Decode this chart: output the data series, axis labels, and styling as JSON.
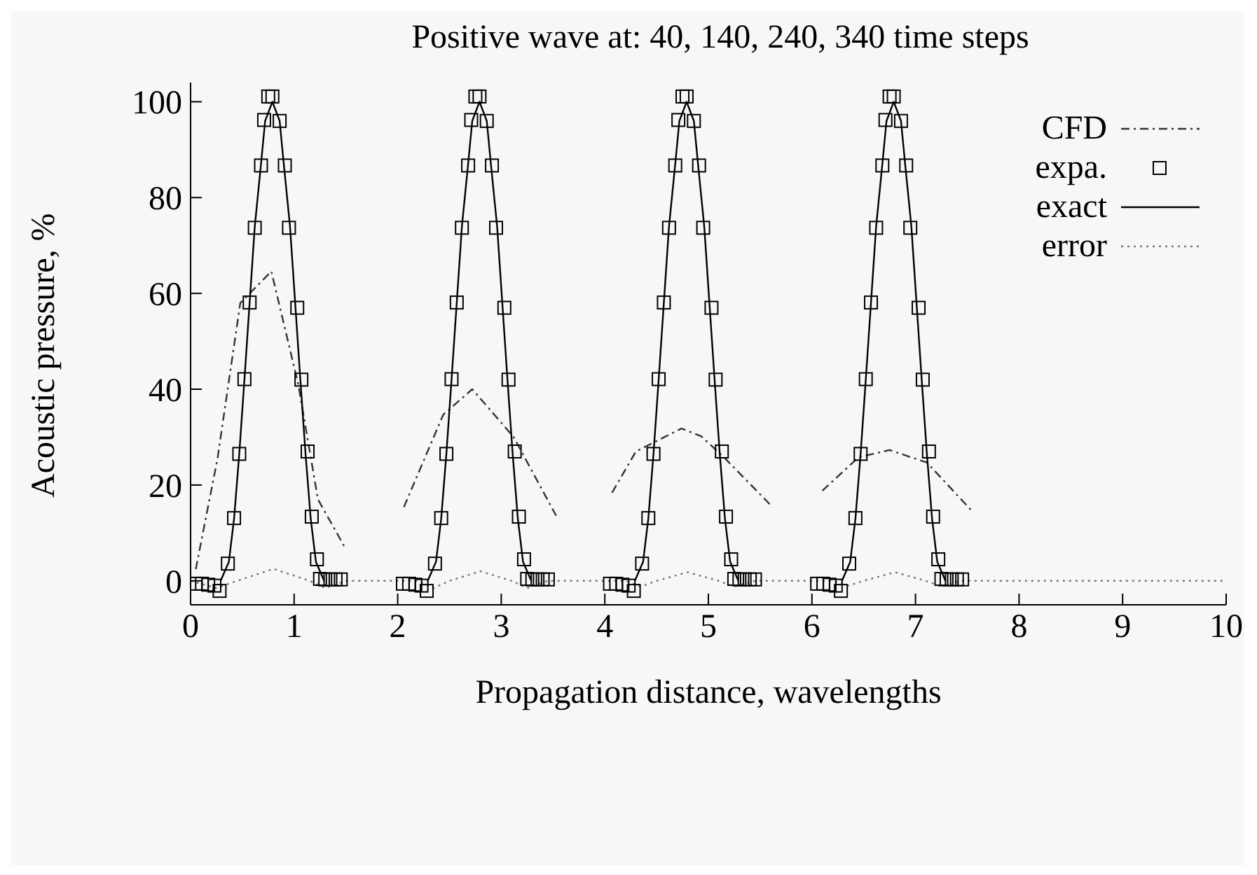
{
  "chart_data": {
    "type": "line",
    "title": "Positive wave at: 40, 140, 240, 340 time steps",
    "xlabel": "Propagation distance, wavelengths",
    "ylabel": "Acoustic pressure, %",
    "xlim": [
      0,
      10
    ],
    "xticks": [
      0,
      1,
      2,
      3,
      4,
      5,
      6,
      7,
      8,
      9,
      10
    ],
    "ylim": [
      -5,
      104
    ],
    "yticks": [
      0,
      20,
      40,
      60,
      80,
      100
    ],
    "grid": false,
    "legend": "top right",
    "series": [
      {
        "name": "CFD",
        "color": "#333333",
        "line_style": "dashed",
        "marker": "none",
        "x": [
          0.05,
          0.26,
          0.48,
          0.78,
          1.04,
          1.23,
          1.5,
          1.8,
          2.06,
          2.44,
          2.72,
          3.12,
          3.53,
          3.8,
          4.07,
          4.3,
          4.74,
          4.93,
          5.15,
          5.62,
          5.9,
          6.1,
          6.45,
          6.75,
          7.11,
          7.54
        ],
        "values": [
          2.4,
          25.5,
          58,
          64.6,
          41,
          17,
          6.6,
          null,
          15.4,
          34.7,
          40,
          30,
          13.6,
          null,
          18.4,
          27,
          31.8,
          30.2,
          25.8,
          15.4,
          null,
          18.8,
          25.8,
          27.3,
          24.7,
          14.7
        ]
      },
      {
        "name": "expa.",
        "type": "scatter",
        "color": "#000000",
        "marker": "square",
        "x": [
          0.05,
          0.11,
          0.17,
          0.23,
          0.28,
          0.36,
          0.42,
          0.47,
          0.52,
          0.57,
          0.62,
          0.68,
          0.71,
          0.75,
          0.79,
          0.86,
          0.91,
          0.95,
          1.03,
          1.07,
          1.13,
          1.17,
          1.22,
          1.25,
          1.3,
          1.35,
          1.4,
          1.45,
          2.05,
          2.11,
          2.17,
          2.23,
          2.28,
          2.36,
          2.42,
          2.47,
          2.52,
          2.57,
          2.62,
          2.68,
          2.71,
          2.75,
          2.79,
          2.86,
          2.91,
          2.95,
          3.03,
          3.07,
          3.13,
          3.17,
          3.22,
          3.25,
          3.3,
          3.35,
          3.4,
          3.45,
          4.05,
          4.11,
          4.17,
          4.23,
          4.28,
          4.36,
          4.42,
          4.47,
          4.52,
          4.57,
          4.62,
          4.68,
          4.71,
          4.75,
          4.79,
          4.86,
          4.91,
          4.95,
          5.03,
          5.07,
          5.13,
          5.17,
          5.22,
          5.25,
          5.3,
          5.35,
          5.4,
          5.45,
          6.05,
          6.11,
          6.17,
          6.23,
          6.28,
          6.36,
          6.42,
          6.47,
          6.52,
          6.57,
          6.62,
          6.68,
          6.71,
          6.75,
          6.79,
          6.86,
          6.91,
          6.95,
          7.03,
          7.07,
          7.13,
          7.17,
          7.22,
          7.25,
          7.3,
          7.35,
          7.4,
          7.45
        ],
        "values": [
          -0.6,
          -0.6,
          -0.8,
          -1,
          -2.1,
          3.6,
          13.1,
          26.5,
          42.1,
          58.1,
          73.7,
          86.7,
          96.2,
          101.1,
          101.1,
          96,
          86.7,
          73.7,
          57,
          42,
          27,
          13.4,
          4.5,
          0.4,
          0.3,
          0.3,
          0.3,
          0.3,
          -0.6,
          -0.6,
          -0.8,
          -1,
          -2.1,
          3.6,
          13.1,
          26.5,
          42.1,
          58.1,
          73.7,
          86.7,
          96.2,
          101.1,
          101.1,
          96,
          86.7,
          73.7,
          57,
          42,
          27,
          13.4,
          4.5,
          0.4,
          0.3,
          0.3,
          0.3,
          0.3,
          -0.6,
          -0.6,
          -0.8,
          -1,
          -2.1,
          3.6,
          13.1,
          26.5,
          42.1,
          58.1,
          73.7,
          86.7,
          96.2,
          101.1,
          101.1,
          96,
          86.7,
          73.7,
          57,
          42,
          27,
          13.4,
          4.5,
          0.4,
          0.3,
          0.3,
          0.3,
          0.3,
          -0.6,
          -0.6,
          -0.8,
          -1,
          -2.1,
          3.6,
          13.1,
          26.5,
          42.1,
          58.1,
          73.7,
          86.7,
          96.2,
          101.1,
          101.1,
          96,
          86.7,
          73.7,
          57,
          42,
          27,
          13.4,
          4.5,
          0.4,
          0.3,
          0.3,
          0.3,
          0.3
        ]
      },
      {
        "name": "exact",
        "color": "#000000",
        "line_style": "solid",
        "marker": "none",
        "x": [
          0.29,
          0.37,
          0.42,
          0.47,
          0.52,
          0.57,
          0.62,
          0.68,
          0.72,
          0.79,
          0.86,
          0.9,
          0.96,
          1.01,
          1.06,
          1.11,
          1.16,
          1.21,
          1.29,
          1.8,
          2.29,
          2.37,
          2.42,
          2.47,
          2.52,
          2.57,
          2.62,
          2.68,
          2.72,
          2.79,
          2.86,
          2.9,
          2.96,
          3.01,
          3.06,
          3.11,
          3.16,
          3.21,
          3.29,
          3.8,
          4.29,
          4.37,
          4.42,
          4.47,
          4.52,
          4.57,
          4.62,
          4.68,
          4.72,
          4.79,
          4.86,
          4.9,
          4.96,
          5.01,
          5.06,
          5.11,
          5.16,
          5.21,
          5.29,
          5.8,
          6.29,
          6.37,
          6.42,
          6.47,
          6.52,
          6.57,
          6.62,
          6.68,
          6.72,
          6.79,
          6.86,
          6.9,
          6.96,
          7.01,
          7.06,
          7.11,
          7.16,
          7.21,
          7.29
        ],
        "values": [
          0,
          4,
          13,
          26.5,
          42,
          58,
          74,
          87,
          96,
          100,
          96,
          87,
          74,
          58,
          42,
          26.5,
          13,
          4,
          0,
          null,
          0,
          4,
          13,
          26.5,
          42,
          58,
          74,
          87,
          96,
          100,
          96,
          87,
          74,
          58,
          42,
          26.5,
          13,
          4,
          0,
          null,
          0,
          4,
          13,
          26.5,
          42,
          58,
          74,
          87,
          96,
          100,
          96,
          87,
          74,
          58,
          42,
          26.5,
          13,
          4,
          0,
          null,
          0,
          4,
          13,
          26.5,
          42,
          58,
          74,
          87,
          96,
          100,
          96,
          87,
          74,
          58,
          42,
          26.5,
          13,
          4,
          0
        ]
      },
      {
        "name": "error",
        "color": "#777777",
        "line_style": "dotted",
        "marker": "none",
        "x": [
          0,
          0.25,
          0.45,
          0.8,
          1.15,
          1.3,
          1.5,
          2.2,
          2.35,
          2.5,
          2.8,
          3.1,
          3.25,
          3.45,
          4.2,
          4.35,
          4.5,
          4.8,
          5.1,
          5.25,
          5.45,
          6.2,
          6.35,
          6.5,
          6.8,
          7.1,
          7.25,
          7.45,
          10
        ],
        "values": [
          0,
          -1.5,
          0,
          2.5,
          0,
          -1.5,
          0,
          0,
          -1.5,
          0,
          2,
          0,
          -1.5,
          0,
          0,
          -1.2,
          0,
          1.8,
          0,
          -1.2,
          0,
          0,
          -1,
          0,
          1.8,
          0,
          -1.2,
          0,
          0
        ]
      }
    ]
  }
}
